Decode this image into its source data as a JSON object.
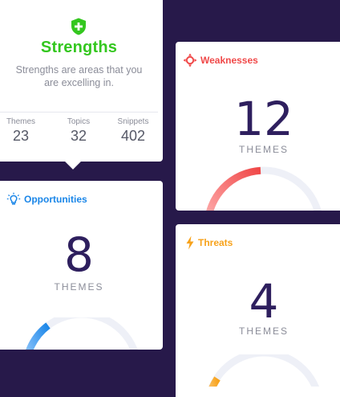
{
  "strengths": {
    "title": "Strengths",
    "description": "Strengths are areas that you are excelling in.",
    "stats": [
      {
        "label": "Themes",
        "value": "23"
      },
      {
        "label": "Topics",
        "value": "32"
      },
      {
        "label": "Snippets",
        "value": "402"
      }
    ],
    "icon": "shield-plus-icon",
    "color": "#34c71f"
  },
  "weaknesses": {
    "title": "Weaknesses",
    "count": "12",
    "unit": "THEMES",
    "icon": "crosshair-icon",
    "color": "#f04848",
    "gauge_fraction": 0.38
  },
  "opportunities": {
    "title": "Opportunities",
    "count": "8",
    "unit": "THEMES",
    "icon": "lightbulb-icon",
    "color": "#1a86e8",
    "gauge_fraction": 0.22
  },
  "threats": {
    "title": "Threats",
    "count": "4",
    "unit": "THEMES",
    "icon": "lightning-icon",
    "color": "#f7a21b",
    "gauge_fraction": 0.12
  },
  "colors": {
    "background": "#27194a",
    "card": "#ffffff",
    "number": "#2e1f5e",
    "muted": "#8b8d99",
    "gauge_track": "#eef0f7"
  }
}
